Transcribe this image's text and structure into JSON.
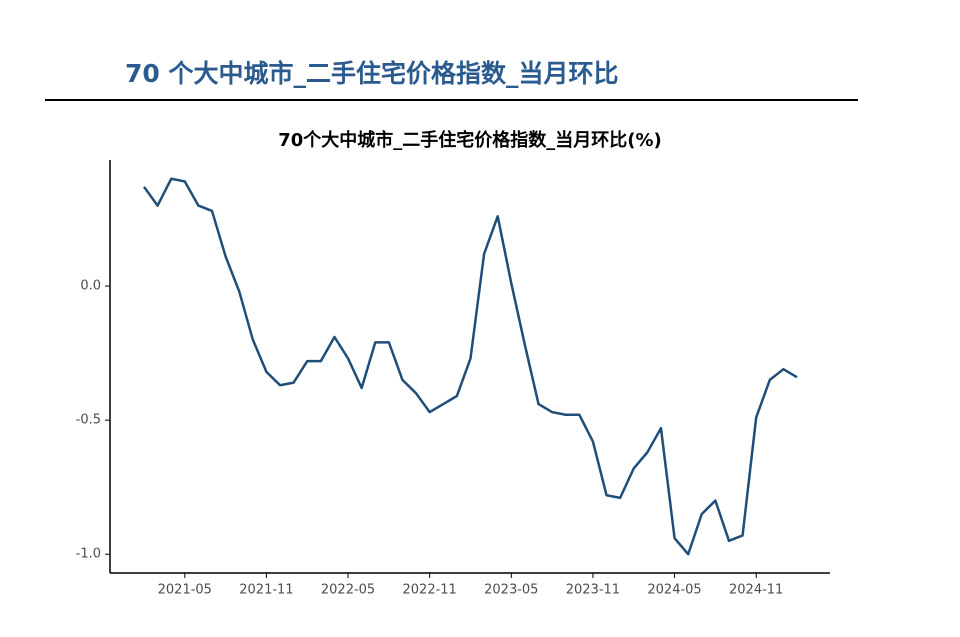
{
  "header": {
    "title": "70 个大中城市_二手住宅价格指数_当月环比"
  },
  "chart_data": {
    "type": "line",
    "title": "70个大中城市_二手住宅价格指数_当月环比(%)",
    "categories": [
      "2021-02",
      "2021-03",
      "2021-04",
      "2021-05",
      "2021-06",
      "2021-07",
      "2021-08",
      "2021-09",
      "2021-10",
      "2021-11",
      "2021-12",
      "2022-01",
      "2022-02",
      "2022-03",
      "2022-04",
      "2022-05",
      "2022-06",
      "2022-07",
      "2022-08",
      "2022-09",
      "2022-10",
      "2022-11",
      "2022-12",
      "2023-01",
      "2023-02",
      "2023-03",
      "2023-04",
      "2023-05",
      "2023-06",
      "2023-07",
      "2023-08",
      "2023-09",
      "2023-10",
      "2023-11",
      "2023-12",
      "2024-01",
      "2024-02",
      "2024-03",
      "2024-04",
      "2024-05",
      "2024-06",
      "2024-07",
      "2024-08",
      "2024-09",
      "2024-10",
      "2024-11",
      "2024-12",
      "2025-01",
      "2025-02"
    ],
    "series": [
      {
        "name": "当月环比",
        "color": "#1f4e79",
        "values": [
          0.37,
          0.3,
          0.4,
          0.39,
          0.3,
          0.28,
          0.11,
          -0.02,
          -0.2,
          -0.32,
          -0.37,
          -0.36,
          -0.28,
          -0.28,
          -0.19,
          -0.27,
          -0.38,
          -0.21,
          -0.21,
          -0.35,
          -0.4,
          -0.47,
          -0.44,
          -0.41,
          -0.27,
          0.12,
          0.26,
          0.01,
          -0.22,
          -0.44,
          -0.47,
          -0.48,
          -0.48,
          -0.58,
          -0.78,
          -0.79,
          -0.68,
          -0.62,
          -0.53,
          -0.94,
          -1.0,
          -0.85,
          -0.8,
          -0.95,
          -0.93,
          -0.49,
          -0.35,
          -0.31,
          -0.34
        ]
      }
    ],
    "xticks": [
      "2021-05",
      "2021-11",
      "2022-05",
      "2022-11",
      "2023-05",
      "2023-11",
      "2024-05",
      "2024-11"
    ],
    "ylim": [
      -1.07,
      0.47
    ],
    "yticks": [
      {
        "value": -1,
        "label": "-1.0"
      },
      {
        "value": -0.5,
        "label": "-0.5"
      },
      {
        "value": 0,
        "label": "0.0"
      }
    ],
    "grid": false
  }
}
